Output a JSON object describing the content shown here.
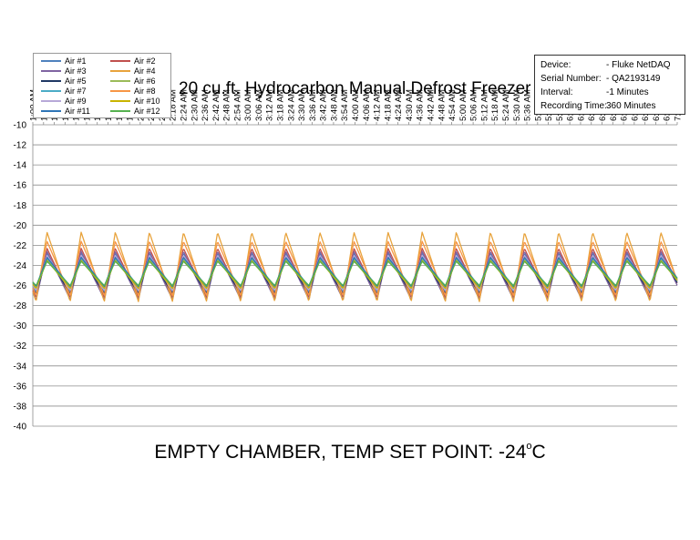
{
  "chart_data": {
    "type": "line",
    "title": "20 cu.ft. Hydrocarbon Manual Defrost Freezer",
    "xlabel": "",
    "ylabel": "",
    "ylim": [
      -40,
      -10
    ],
    "yticks": [
      -10,
      -12,
      -14,
      -16,
      -18,
      -20,
      -22,
      -24,
      -26,
      -28,
      -30,
      -32,
      -34,
      -36,
      -38,
      -40
    ],
    "grid": true,
    "legend_position": "top-left",
    "x_categories": [
      "1:00 AM",
      "1:06 AM",
      "1:12 AM",
      "1:18 AM",
      "1:24 AM",
      "1:30 AM",
      "1:36 AM",
      "1:42 AM",
      "1:48 AM",
      "1:54 AM",
      "2:00 AM",
      "2:06 AM",
      "2:12 AM",
      "2:18 AM",
      "2:24 AM",
      "2:30 AM",
      "2:36 AM",
      "2:42 AM",
      "2:48 AM",
      "2:54 AM",
      "3:00 AM",
      "3:06 AM",
      "3:12 AM",
      "3:18 AM",
      "3:24 AM",
      "3:30 AM",
      "3:36 AM",
      "3:42 AM",
      "3:48 AM",
      "3:54 AM",
      "4:00 AM",
      "4:06 AM",
      "4:12 AM",
      "4:18 AM",
      "4:24 AM",
      "4:30 AM",
      "4:36 AM",
      "4:42 AM",
      "4:48 AM",
      "4:54 AM",
      "5:00 AM",
      "5:06 AM",
      "5:12 AM",
      "5:18 AM",
      "5:24 AM",
      "5:30 AM",
      "5:36 AM",
      "5:42 AM",
      "5:48 AM",
      "5:54 AM",
      "6:00 AM",
      "6:06 AM",
      "6:12 AM",
      "6:18 AM",
      "6:24 AM",
      "6:30 AM",
      "6:36 AM",
      "6:42 AM",
      "6:48 AM",
      "6:54 AM",
      "7:00 AM"
    ],
    "cycle": {
      "count": 19,
      "first_peak_minute": 27,
      "period_minutes": 19.05,
      "total_minutes": 360
    },
    "series": [
      {
        "name": "Air #1",
        "color": "#4f81bd",
        "min": -26.6,
        "max": -22.8
      },
      {
        "name": "Air #2",
        "color": "#c0504d",
        "min": -27.2,
        "max": -22.3
      },
      {
        "name": "Air #3",
        "color": "#8064a2",
        "min": -27.4,
        "max": -22.6
      },
      {
        "name": "Air #4",
        "color": "#e8a33c",
        "min": -27.6,
        "max": -20.7
      },
      {
        "name": "Air #5",
        "color": "#1f3864",
        "min": -26.8,
        "max": -23.1
      },
      {
        "name": "Air #6",
        "color": "#9bbb59",
        "min": -26.2,
        "max": -23.3
      },
      {
        "name": "Air #7",
        "color": "#4bacc6",
        "min": -26.4,
        "max": -23.4
      },
      {
        "name": "Air #8",
        "color": "#f79646",
        "min": -27.0,
        "max": -21.6
      },
      {
        "name": "Air #9",
        "color": "#b7a8d8",
        "min": -26.5,
        "max": -23.0
      },
      {
        "name": "Air #10",
        "color": "#c9b400",
        "min": -26.3,
        "max": -23.5
      },
      {
        "name": "Air #11",
        "color": "#2e75b6",
        "min": -26.1,
        "max": -23.2
      },
      {
        "name": "Air #12",
        "color": "#55b04f",
        "min": -26.0,
        "max": -23.6
      }
    ]
  },
  "info_box": {
    "rows": [
      {
        "key": "Device:",
        "value": "- Fluke NetDAQ"
      },
      {
        "key": "Serial Number:",
        "value": "- QA2193149"
      },
      {
        "key": "Interval:",
        "value": "-1 Minutes"
      },
      {
        "key": "Recording Time:",
        "value": "360 Minutes"
      }
    ]
  },
  "caption": {
    "main": "EMPTY CHAMBER, TEMP SET POINT: -24",
    "degree_mark": "o",
    "unit": "C"
  }
}
